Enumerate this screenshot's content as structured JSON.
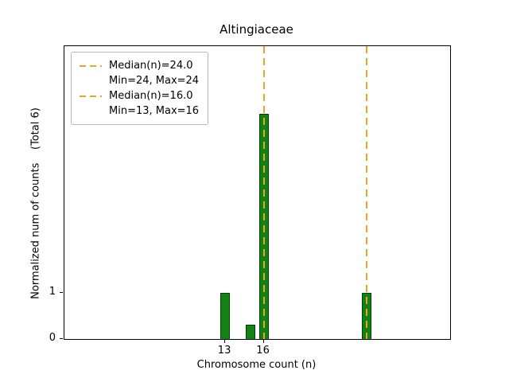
{
  "chart_data": {
    "type": "bar",
    "title": "Altingiaceae",
    "xlabel": "Chromosome count (n)",
    "ylabel": "Normalized num of counts    (Total 6)",
    "xlim": [
      0.5,
      30.5
    ],
    "ylim": [
      0,
      6.3
    ],
    "xticks": [
      13,
      16
    ],
    "yticks": [
      0,
      1
    ],
    "grid": false,
    "bar_width": 0.75,
    "bar_color": "#128312",
    "bar_edge_color": "#063f06",
    "bars": [
      {
        "x": 13,
        "height": 1.0
      },
      {
        "x": 15,
        "height": 0.3
      },
      {
        "x": 16,
        "height": 4.85
      },
      {
        "x": 24,
        "height": 1.0
      }
    ],
    "vline_color": "#eba42b",
    "vlines": [
      {
        "x": 16,
        "label": "Median(n)=16.0"
      },
      {
        "x": 24,
        "label": "Median(n)=24.0"
      }
    ],
    "legend_position": "upper-left",
    "legend": [
      {
        "label": "Median(n)=24.0",
        "swatch": "dashed-line"
      },
      {
        "label": "Min=24, Max=24",
        "swatch": "none"
      },
      {
        "label": "Median(n)=16.0",
        "swatch": "dashed-line"
      },
      {
        "label": "Min=13, Max=16",
        "swatch": "none"
      }
    ]
  }
}
